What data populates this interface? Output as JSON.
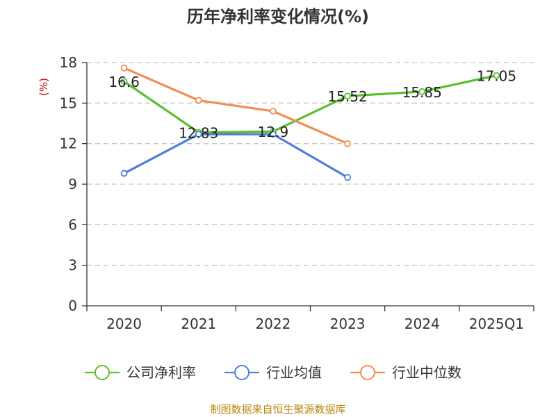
{
  "chart_data": {
    "type": "line",
    "title": "历年净利率变化情况(%)",
    "unit_label": "(%)",
    "categories": [
      "2020",
      "2021",
      "2022",
      "2023",
      "2024",
      "2025Q1"
    ],
    "ylim": [
      0,
      18
    ],
    "yticks": [
      0,
      3,
      6,
      9,
      12,
      15,
      18
    ],
    "grid": true,
    "legend_position": "bottom",
    "series": [
      {
        "name": "公司净利率",
        "color": "#5bbf2d",
        "values": [
          16.6,
          12.83,
          12.9,
          15.52,
          15.85,
          17.05
        ],
        "labels": [
          "16.6",
          "12.83",
          "12.9",
          "15.52",
          "15.85",
          "17.05"
        ]
      },
      {
        "name": "行业均值",
        "color": "#4f7fd9",
        "values": [
          9.8,
          12.7,
          12.7,
          9.5,
          null,
          null
        ]
      },
      {
        "name": "行业中位数",
        "color": "#f28c55",
        "values": [
          17.6,
          15.2,
          14.4,
          12.0,
          null,
          null
        ]
      }
    ]
  },
  "source_text": "制图数据来自恒生聚源数据库"
}
